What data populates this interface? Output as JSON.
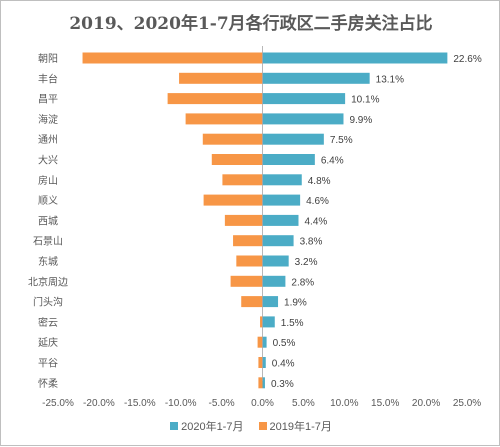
{
  "chart_data": {
    "type": "bar",
    "orientation": "horizontal",
    "title": "2019、2020年1-7月各行政区二手房关注占比",
    "categories": [
      "朝阳",
      "丰台",
      "昌平",
      "海淀",
      "通州",
      "大兴",
      "房山",
      "顺义",
      "西城",
      "石景山",
      "东城",
      "北京周边",
      "门头沟",
      "密云",
      "延庆",
      "平谷",
      "怀柔"
    ],
    "series": [
      {
        "name": "2020年1-7月",
        "color": "#4bacc6",
        "values": [
          22.6,
          13.1,
          10.1,
          9.9,
          7.5,
          6.4,
          4.8,
          4.6,
          4.4,
          3.8,
          3.2,
          2.8,
          1.9,
          1.5,
          0.5,
          0.4,
          0.3
        ],
        "labels": [
          "22.6%",
          "13.1%",
          "10.1%",
          "9.9%",
          "7.5%",
          "6.4%",
          "4.8%",
          "4.6%",
          "4.4%",
          "3.8%",
          "3.2%",
          "2.8%",
          "1.9%",
          "1.5%",
          "0.5%",
          "0.4%",
          "0.3%"
        ]
      },
      {
        "name": "2019年1-7月",
        "color": "#f79646",
        "values": [
          -22.0,
          -10.2,
          -11.6,
          -9.4,
          -7.3,
          -6.2,
          -4.9,
          -7.2,
          -4.6,
          -3.6,
          -3.2,
          -3.9,
          -2.6,
          -0.3,
          -0.6,
          -0.5,
          -0.5
        ]
      }
    ],
    "xlim": [
      -25,
      25
    ],
    "xticks": [
      "-25.0%",
      "-20.0%",
      "-15.0%",
      "-10.0%",
      "-5.0%",
      "0.0%",
      "5.0%",
      "10.0%",
      "15.0%",
      "20.0%",
      "25.0%"
    ],
    "grid": false,
    "legend_position": "bottom"
  }
}
